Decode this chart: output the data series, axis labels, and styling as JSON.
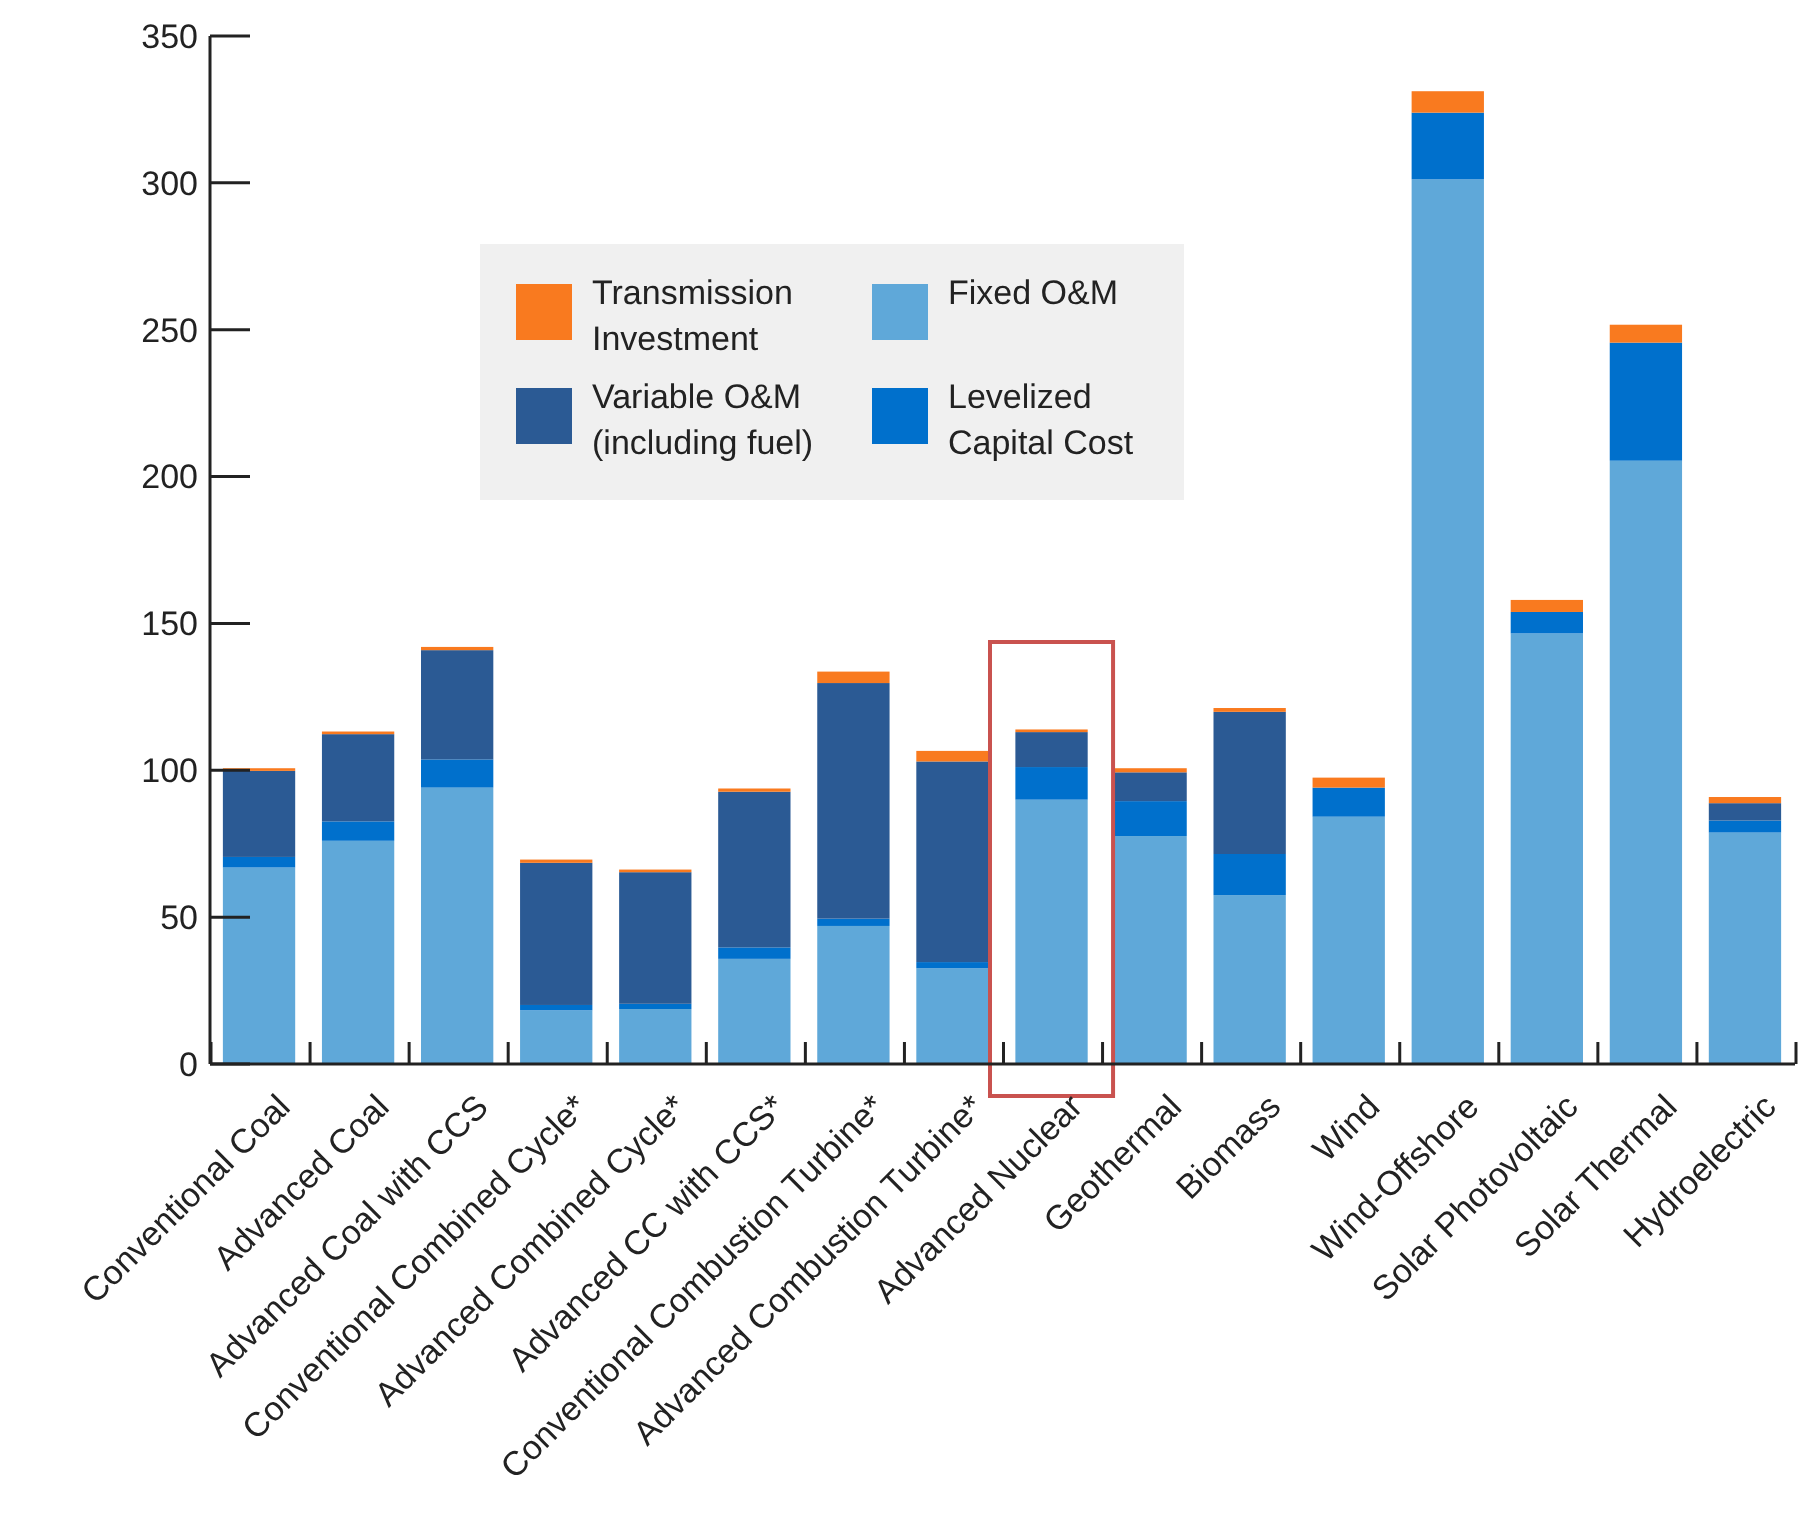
{
  "chart_data": {
    "type": "bar",
    "stacked": true,
    "categories": [
      "Conventional Coal",
      "Advanced Coal",
      "Advanced Coal with CCS",
      "Conventional Combined Cycle*",
      "Advanced Combined Cycle*",
      "Advanced CC with CCS*",
      "Conventional Combustion Turbine*",
      "Advanced Combustion Turbine*",
      "Advanced Nuclear",
      "Geothermal",
      "Biomass",
      "Wind",
      "Wind-Offshore",
      "Solar Photovoltaic",
      "Solar Thermal",
      "Hydroelectric"
    ],
    "series": [
      {
        "name": "Fixed O&M",
        "color": "#5fa8d9",
        "values": [
          66.9,
          76.0,
          94.1,
          18.3,
          18.7,
          35.8,
          47.0,
          32.6,
          90.0,
          77.6,
          57.5,
          84.2,
          301.2,
          146.6,
          205.4,
          78.8
        ]
      },
      {
        "name": "Levelized Capital Cost",
        "color": "#0070cc",
        "values": [
          3.6,
          6.6,
          9.6,
          1.8,
          1.8,
          3.9,
          2.5,
          2.1,
          11.1,
          11.9,
          14.0,
          9.9,
          22.7,
          7.3,
          40.2,
          4.1
        ]
      },
      {
        "name": "Variable O&M (including fuel)",
        "color": "#2b5a94",
        "values": [
          29.3,
          29.7,
          37.2,
          48.4,
          44.8,
          53.0,
          80.2,
          68.3,
          11.9,
          9.8,
          48.4,
          0,
          0,
          0,
          0,
          5.9
        ]
      },
      {
        "name": "Transmission Investment",
        "color": "#f97a1f",
        "values": [
          0.9,
          0.9,
          1.1,
          1.1,
          0.9,
          1.1,
          3.9,
          3.6,
          0.9,
          1.4,
          1.3,
          3.4,
          7.3,
          4.1,
          6.1,
          2.1
        ]
      }
    ],
    "ylim": [
      0,
      350
    ],
    "yticks": [
      0,
      50,
      100,
      150,
      200,
      250,
      300,
      350
    ],
    "legend": "top left"
  }
}
